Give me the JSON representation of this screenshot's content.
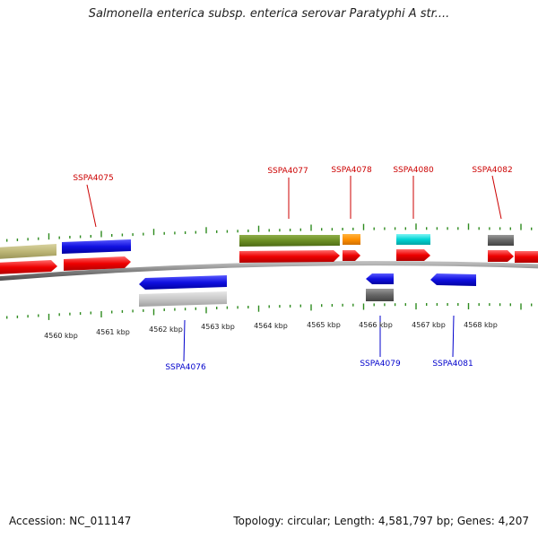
{
  "title": "Salmonella enterica subsp. enterica serovar Paratyphi A str....",
  "footer": {
    "accession": "Accession: NC_011147",
    "summary": "Topology: circular; Length: 4,581,797 bp; Genes: 4,207"
  },
  "colors": {
    "tick": "#2e8b1e",
    "backbone": "#808080",
    "label_top": "#cc0000",
    "label_bottom": "#0000cc"
  },
  "kbp_labels": [
    "4560 kbp",
    "4561 kbp",
    "4562 kbp",
    "4563 kbp",
    "4564 kbp",
    "4565 kbp",
    "4566 kbp",
    "4567 kbp",
    "4568 kbp"
  ],
  "gene_labels_top": [
    "SSPA4075",
    "SSPA4077",
    "SSPA4078",
    "SSPA4080",
    "SSPA4082"
  ],
  "gene_labels_bottom": [
    "SSPA4076",
    "SSPA4079",
    "SSPA4081"
  ]
}
